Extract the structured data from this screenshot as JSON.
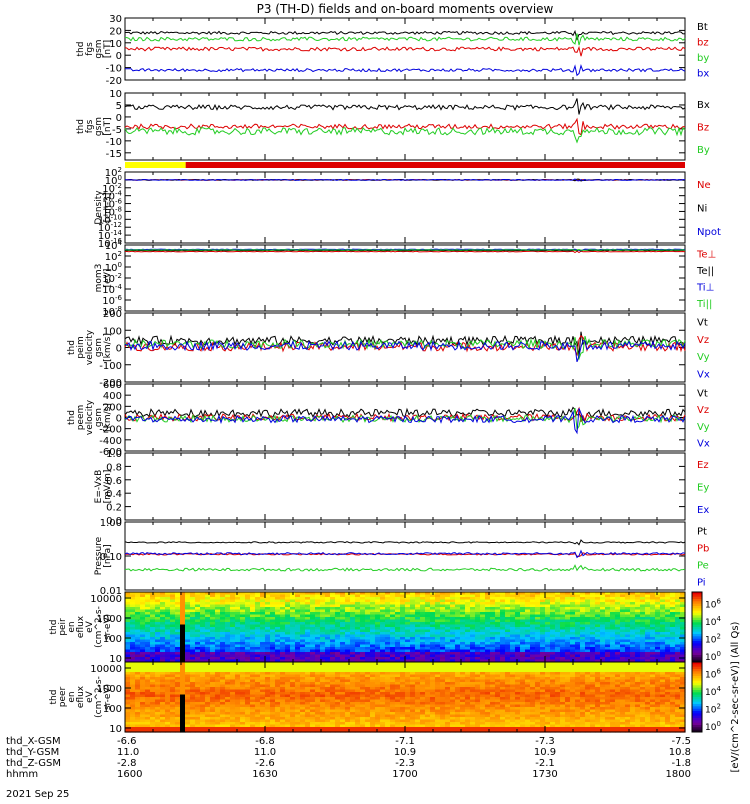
{
  "title": "P3 (TH-D) fields and on-board moments overview",
  "date_label": "2021 Sep 25",
  "colors": {
    "black": "#000000",
    "red": "#dd0000",
    "green": "#22cc22",
    "blue": "#0000dd",
    "yellow": "#ffff00"
  },
  "mode_bar": {
    "yellow_until": "1613",
    "colors": [
      "yellow",
      "red"
    ]
  },
  "footer": {
    "rows": [
      {
        "label": "thd_X-GSM",
        "values": [
          "-6.6",
          "-6.8",
          "-7.1",
          "-7.3",
          "-7.5"
        ]
      },
      {
        "label": "thd_Y-GSM",
        "values": [
          "11.0",
          "11.0",
          "10.9",
          "10.9",
          "10.8"
        ]
      },
      {
        "label": "thd_Z-GSM",
        "values": [
          "-2.8",
          "-2.6",
          "-2.3",
          "-2.1",
          "-1.8"
        ]
      },
      {
        "label": "hhmm",
        "values": [
          "1600",
          "1630",
          "1700",
          "1730",
          "1800"
        ]
      }
    ]
  },
  "colorbar_label": "[eV/(cm^2-sec-sr-eV)] (All Qs)",
  "chart_data": [
    {
      "type": "line",
      "ylabel": [
        "thd",
        "fgs",
        "gsm",
        "[nT]"
      ],
      "ylim": [
        -20,
        30
      ],
      "yticks": [
        -20,
        -10,
        0,
        10,
        20,
        30
      ],
      "series": [
        {
          "name": "Bt",
          "color": "black",
          "level": 18,
          "noise": 1.2
        },
        {
          "name": "bz",
          "color": "red",
          "level": 5,
          "noise": 1.5
        },
        {
          "name": "by",
          "color": "green",
          "level": 13,
          "noise": 1.5
        },
        {
          "name": "bx",
          "color": "blue",
          "level": -12,
          "noise": 1.2
        }
      ]
    },
    {
      "type": "line",
      "ylabel": [
        "thd",
        "fgs",
        "gsm",
        "[nT]"
      ],
      "ylim": [
        -18,
        10
      ],
      "yticks": [
        -15,
        -10,
        -5,
        0,
        5,
        10
      ],
      "series": [
        {
          "name": "Bx",
          "color": "black",
          "level": 4,
          "noise": 1.0
        },
        {
          "name": "Bz",
          "color": "red",
          "level": -4,
          "noise": 1.0
        },
        {
          "name": "By",
          "color": "green",
          "level": -6,
          "noise": 1.5
        }
      ]
    },
    {
      "type": "line",
      "ylabel": [
        "Density",
        "[cm-3]"
      ],
      "scale": "log",
      "ylim_exp": [
        -16,
        2
      ],
      "ytick_labels": [
        "10^-16",
        "10^-14",
        "10^-12",
        "10^-10",
        "10^-8",
        "10^-6",
        "10^-4",
        "10^-2",
        "10^0",
        "10^2"
      ],
      "series": [
        {
          "name": "Ne",
          "color": "red",
          "level_exp": 0,
          "noise": 0.1
        },
        {
          "name": "Ni",
          "color": "black",
          "level_exp": 0,
          "noise": 0.1
        },
        {
          "name": "Npot",
          "color": "blue",
          "level_exp": 0,
          "noise": 0.1
        }
      ]
    },
    {
      "type": "line",
      "ylabel": [
        "mom3",
        "[eV]"
      ],
      "scale": "log",
      "ylim_exp": [
        -8,
        4
      ],
      "ytick_labels": [
        "10^-8",
        "10^-6",
        "10^-4",
        "10^-2",
        "10^0",
        "10^2",
        "10^4"
      ],
      "series": [
        {
          "name": "Te⊥",
          "color": "red",
          "level_exp": 2.8,
          "noise": 0.05
        },
        {
          "name": "Te||",
          "color": "black",
          "level_exp": 3.0,
          "noise": 0.05
        },
        {
          "name": "Ti⊥",
          "color": "blue",
          "level_exp": 3.2,
          "noise": 0.05
        },
        {
          "name": "Ti||",
          "color": "green",
          "level_exp": 3.1,
          "noise": 0.05
        }
      ]
    },
    {
      "type": "line",
      "ylabel": [
        "thd",
        "peim",
        "velocity",
        "gsm",
        "[km/s]"
      ],
      "ylim": [
        -200,
        200
      ],
      "yticks": [
        -200,
        -100,
        0,
        100,
        200
      ],
      "series": [
        {
          "name": "Vt",
          "color": "black",
          "level": 40,
          "noise": 25
        },
        {
          "name": "Vz",
          "color": "red",
          "level": 5,
          "noise": 25
        },
        {
          "name": "Vy",
          "color": "green",
          "level": 20,
          "noise": 25
        },
        {
          "name": "Vx",
          "color": "blue",
          "level": 10,
          "noise": 25
        }
      ]
    },
    {
      "type": "line",
      "ylabel": [
        "thd",
        "peem",
        "velocity",
        "gsm",
        "[km/s]"
      ],
      "ylim": [
        -600,
        600
      ],
      "yticks": [
        -600,
        -400,
        -200,
        0,
        200,
        400,
        600
      ],
      "series": [
        {
          "name": "Vt",
          "color": "black",
          "level": 80,
          "noise": 70
        },
        {
          "name": "Vz",
          "color": "red",
          "level": 0,
          "noise": 60
        },
        {
          "name": "Vy",
          "color": "green",
          "level": -20,
          "noise": 60
        },
        {
          "name": "Vx",
          "color": "blue",
          "level": -30,
          "noise": 60
        }
      ]
    },
    {
      "type": "line",
      "ylabel": [
        "E=-VxB",
        "[mV/m]"
      ],
      "ylim": [
        0,
        1
      ],
      "yticks": [
        0,
        0.2,
        0.4,
        0.6,
        0.8,
        1.0
      ],
      "ytick_labels": [
        "0.0",
        "0.2",
        "0.4",
        "0.6",
        "0.8",
        "1.0"
      ],
      "series": [
        {
          "name": "Ez",
          "color": "red"
        },
        {
          "name": "Ey",
          "color": "green"
        },
        {
          "name": "Ex",
          "color": "blue"
        }
      ]
    },
    {
      "type": "line",
      "ylabel": [
        "Pressure",
        "[nPa]"
      ],
      "scale": "log",
      "ylim_exp": [
        -2,
        0
      ],
      "ytick_labels": [
        "0.01",
        "0.10",
        "1.00"
      ],
      "series": [
        {
          "name": "Pt",
          "color": "black",
          "level_exp": -0.6,
          "noise": 0.02
        },
        {
          "name": "Pb",
          "color": "red",
          "level_exp": -0.95,
          "noise": 0.02
        },
        {
          "name": "Pe",
          "color": "green",
          "level_exp": -1.4,
          "noise": 0.04
        },
        {
          "name": "Pi",
          "color": "blue",
          "level_exp": -0.93,
          "noise": 0.03
        }
      ]
    },
    {
      "type": "heatmap",
      "ylabel": [
        "thd",
        "peir",
        "en",
        "eflux",
        "eV",
        "(cm^2-s-",
        "sr-eV)"
      ],
      "yticks": [
        10,
        100,
        1000,
        10000
      ],
      "ytick_labels": [
        "10",
        "100",
        "1000",
        "10000"
      ],
      "color_ticks": [
        "10^0",
        "10^2",
        "10^4",
        "10^6"
      ]
    },
    {
      "type": "heatmap",
      "ylabel": [
        "thd",
        "peer",
        "en",
        "eflux",
        "eV",
        "(cm^2-s-",
        "sr-eV)"
      ],
      "yticks": [
        10,
        100,
        1000,
        10000
      ],
      "ytick_labels": [
        "10",
        "100",
        "1000",
        "10000"
      ],
      "color_ticks": [
        "10^0",
        "10^2",
        "10^4",
        "10^6"
      ]
    }
  ]
}
